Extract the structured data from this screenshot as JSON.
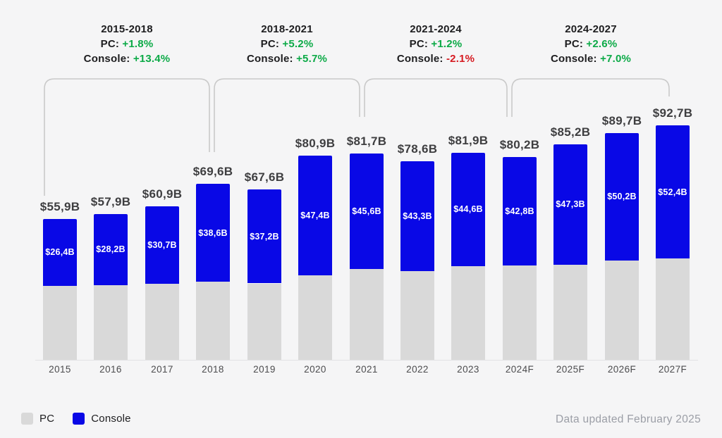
{
  "colors": {
    "positive": "#0caa47",
    "negative": "#d61b22",
    "bar_pc": "#d9d9d9",
    "bar_console": "#0908e6",
    "background": "#f5f5f6"
  },
  "period_annotations": {
    "pc_key": "PC:",
    "console_key": "Console:",
    "items": [
      {
        "range": "2015-2018",
        "pc_value": "+1.8%",
        "pc_trend": "up",
        "console_value": "+13.4%",
        "console_trend": "up"
      },
      {
        "range": "2018-2021",
        "pc_value": "+5.2%",
        "pc_trend": "up",
        "console_value": "+5.7%",
        "console_trend": "up"
      },
      {
        "range": "2021-2024",
        "pc_value": "+1.2%",
        "pc_trend": "up",
        "console_value": "-2.1%",
        "console_trend": "down"
      },
      {
        "range": "2024-2027",
        "pc_value": "+2.6%",
        "pc_trend": "up",
        "console_value": "+7.0%",
        "console_trend": "up"
      }
    ]
  },
  "chart_data": {
    "type": "bar",
    "stacked": true,
    "categories": [
      "2015",
      "2016",
      "2017",
      "2018",
      "2019",
      "2020",
      "2021",
      "2022",
      "2023",
      "2024F",
      "2025F",
      "2026F",
      "2027F"
    ],
    "series": [
      {
        "name": "PC",
        "color": "#d9d9d9",
        "values": [
          29.5,
          29.7,
          30.2,
          31.0,
          30.4,
          33.5,
          36.1,
          35.3,
          37.3,
          37.4,
          37.9,
          39.5,
          40.3
        ]
      },
      {
        "name": "Console",
        "color": "#0908e6",
        "values": [
          26.4,
          28.2,
          30.7,
          38.6,
          37.2,
          47.4,
          45.6,
          43.3,
          44.6,
          42.8,
          47.3,
          50.2,
          52.4
        ]
      }
    ],
    "totals": [
      55.9,
      57.9,
      60.9,
      69.6,
      67.6,
      80.9,
      81.7,
      78.6,
      81.9,
      80.2,
      85.2,
      89.7,
      92.7
    ],
    "total_labels": [
      "$55,9B",
      "$57,9B",
      "$60,9B",
      "$69,6B",
      "$67,6B",
      "$80,9B",
      "$81,7B",
      "$78,6B",
      "$81,9B",
      "$80,2B",
      "$85,2B",
      "$89,7B",
      "$92,7B"
    ],
    "console_labels": [
      "$26,4B",
      "$28,2B",
      "$30,7B",
      "$38,6B",
      "$37,2B",
      "$47,4B",
      "$45,6B",
      "$43,3B",
      "$44,6B",
      "$42,8B",
      "$47,3B",
      "$50,2B",
      "$52,4B"
    ],
    "unit": "billion USD",
    "ylim": [
      0,
      100
    ],
    "grid": false,
    "legend_position": "bottom-left"
  },
  "legend": {
    "items": [
      {
        "label": "PC",
        "color": "#d9d9d9"
      },
      {
        "label": "Console",
        "color": "#0908e6"
      }
    ]
  },
  "footer": {
    "note": "Data updated February 2025"
  }
}
